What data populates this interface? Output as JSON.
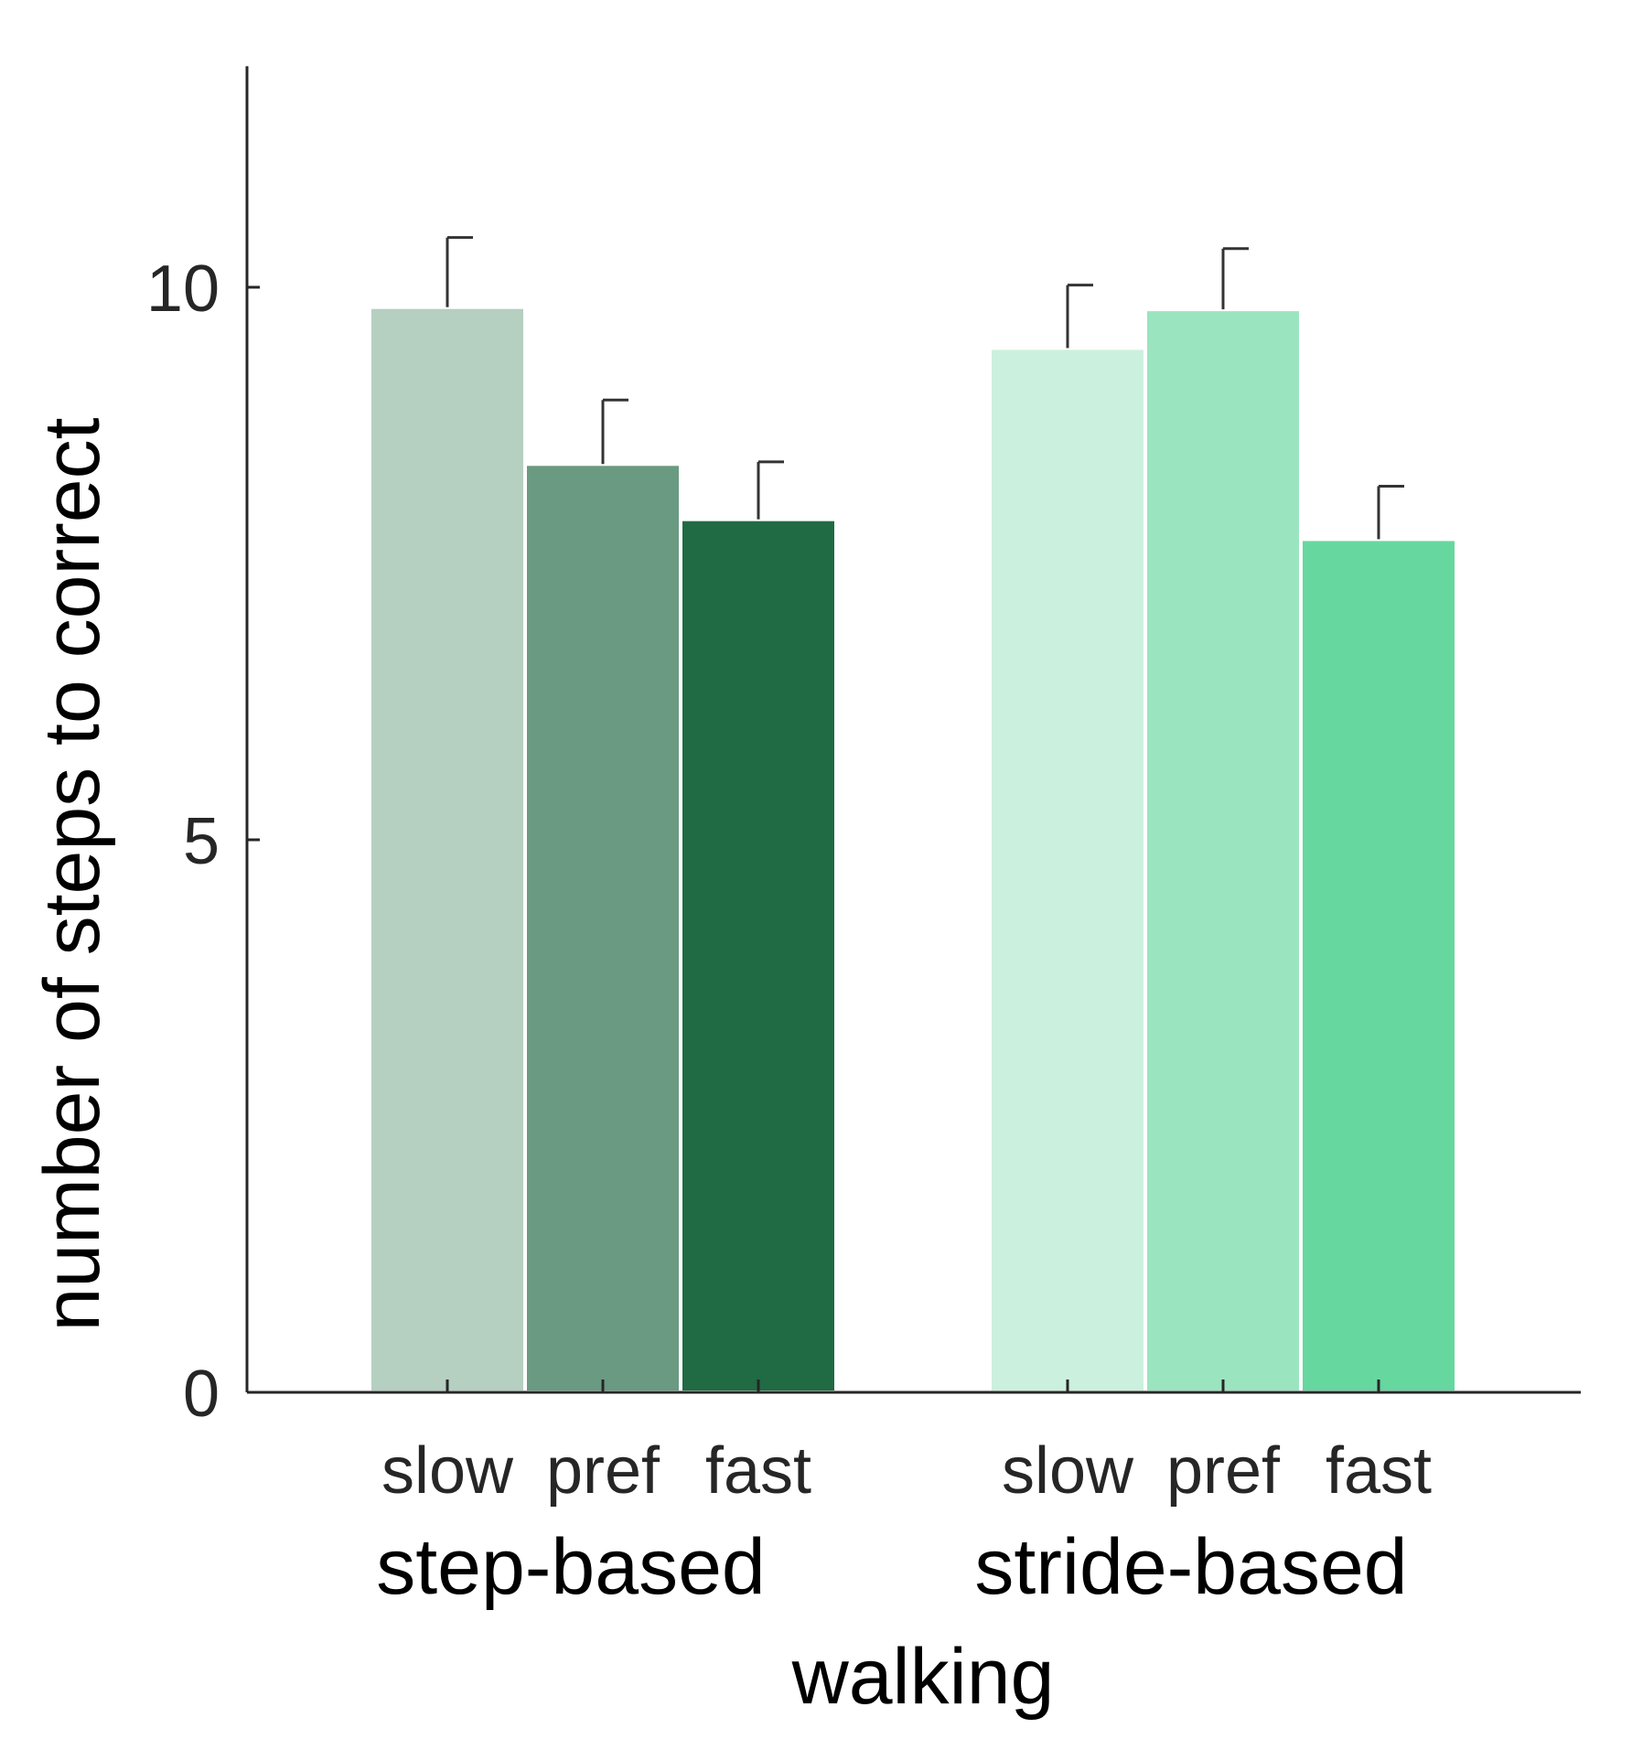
{
  "chart_data": {
    "type": "bar",
    "xlabel": "walking",
    "ylabel": "number of steps to correct",
    "ylim": [
      0,
      12
    ],
    "yticks": [
      0,
      5,
      10
    ],
    "grid": false,
    "groups": [
      {
        "name": "step-based",
        "categories": [
          "slow",
          "pref",
          "fast"
        ],
        "values": [
          9.82,
          8.4,
          7.9
        ],
        "errors": [
          0.63,
          0.58,
          0.52
        ],
        "colors": [
          "#b5cfc1",
          "#6a9a82",
          "#206b43"
        ]
      },
      {
        "name": "stride-based",
        "categories": [
          "slow",
          "pref",
          "fast"
        ],
        "values": [
          9.45,
          9.8,
          7.72
        ],
        "errors": [
          0.57,
          0.55,
          0.48
        ],
        "colors": [
          "#ccf0de",
          "#9be4c0",
          "#66d79f"
        ]
      }
    ]
  }
}
